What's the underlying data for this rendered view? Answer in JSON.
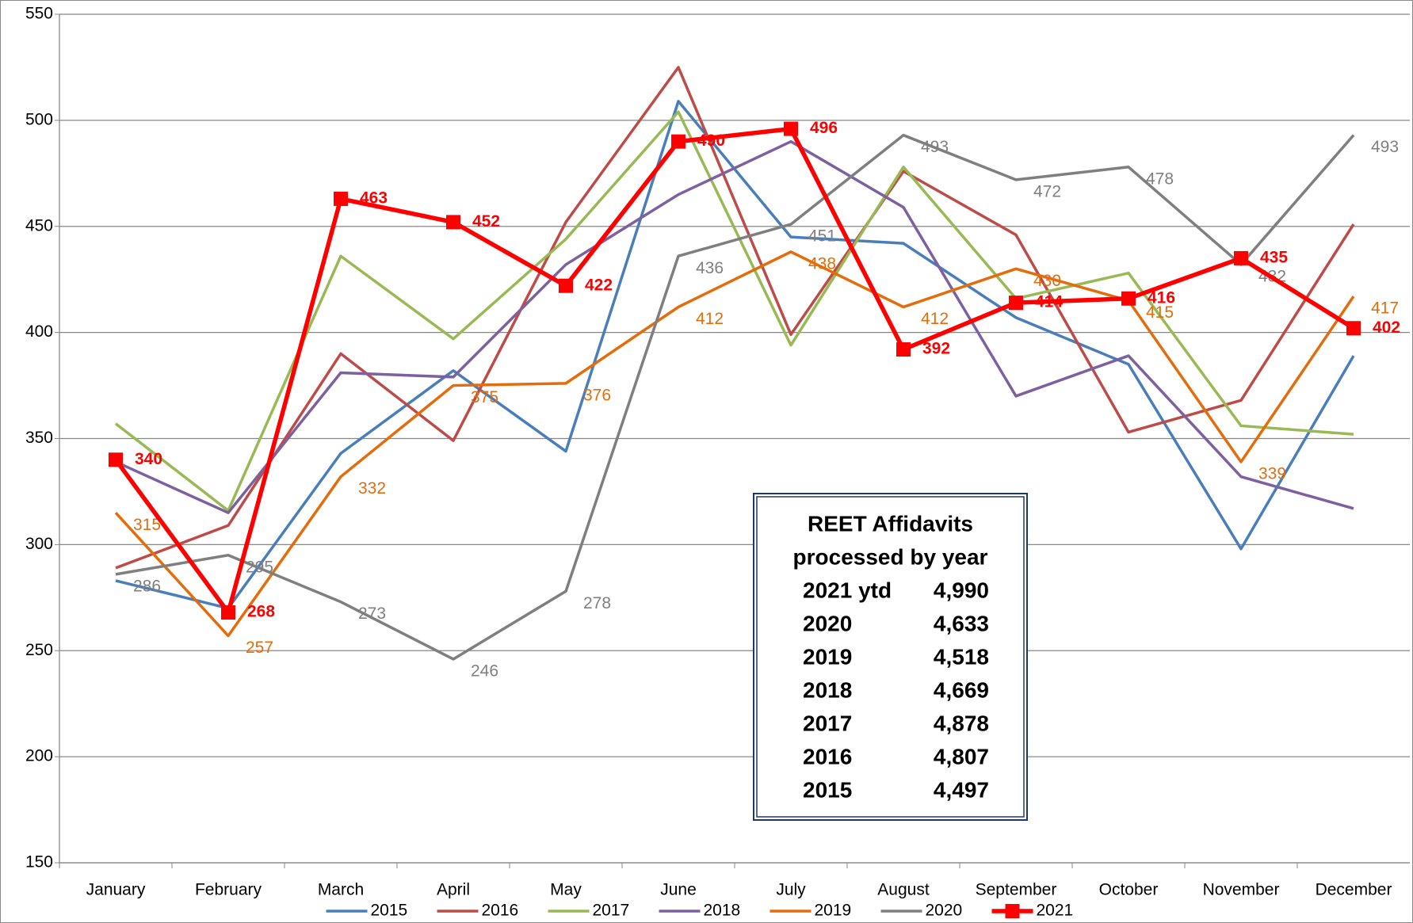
{
  "chart_data": {
    "type": "line",
    "categories": [
      "January",
      "February",
      "March",
      "April",
      "May",
      "June",
      "July",
      "August",
      "September",
      "October",
      "November",
      "December"
    ],
    "series": [
      {
        "name": "2015",
        "color": "#4a7ebb",
        "values": [
          283,
          270,
          343,
          382,
          344,
          509,
          445,
          442,
          407,
          385,
          298,
          389
        ],
        "show_labels": false,
        "marker": false
      },
      {
        "name": "2016",
        "color": "#be4b48",
        "values": [
          289,
          309,
          390,
          349,
          452,
          525,
          399,
          476,
          446,
          353,
          368,
          451
        ],
        "show_labels": false,
        "marker": false
      },
      {
        "name": "2017",
        "color": "#98b954",
        "values": [
          357,
          316,
          436,
          397,
          444,
          504,
          394,
          478,
          416,
          428,
          356,
          352
        ],
        "show_labels": false,
        "marker": false
      },
      {
        "name": "2018",
        "color": "#7d60a0",
        "values": [
          339,
          315,
          381,
          379,
          432,
          465,
          490,
          459,
          370,
          389,
          332,
          317
        ],
        "show_labels": false,
        "marker": false
      },
      {
        "name": "2019",
        "color": "#e46c0a",
        "values": [
          315,
          257,
          332,
          375,
          376,
          412,
          438,
          412,
          430,
          415,
          339,
          417
        ],
        "show_labels": true,
        "marker": false
      },
      {
        "name": "2020",
        "color": "#7f7f7f",
        "values": [
          286,
          295,
          273,
          246,
          278,
          436,
          451,
          493,
          472,
          478,
          432,
          493
        ],
        "show_labels": true,
        "marker": false
      },
      {
        "name": "2021",
        "color": "#ff0000",
        "values": [
          340,
          268,
          463,
          452,
          422,
          490,
          496,
          392,
          414,
          416,
          435,
          402
        ],
        "show_labels": true,
        "marker": true
      }
    ],
    "ylim": [
      150,
      550
    ],
    "yticks": [
      150,
      200,
      250,
      300,
      350,
      400,
      450,
      500,
      550
    ],
    "grid": true,
    "legend": "bottom",
    "annotation": {
      "title": [
        "REET Affidavits",
        "processed by year"
      ],
      "rows": [
        [
          "2021 ytd",
          "4,990"
        ],
        [
          "2020",
          "4,633"
        ],
        [
          "2019",
          "4,518"
        ],
        [
          "2018",
          "4,669"
        ],
        [
          "2017",
          "4,878"
        ],
        [
          "2016",
          "4,807"
        ],
        [
          "2015",
          "4,497"
        ]
      ]
    }
  }
}
